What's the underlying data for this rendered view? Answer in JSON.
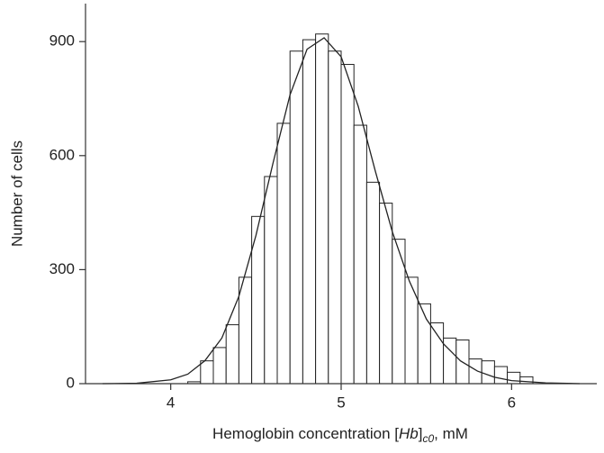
{
  "chart_data": {
    "type": "histogram",
    "xlabel_parts": [
      "Hemoglobin concentration [",
      "Hb",
      "]",
      "c0",
      ", mM"
    ],
    "ylabel": "Number of cells",
    "bins": [
      4.1,
      4.175,
      4.25,
      4.325,
      4.4,
      4.475,
      4.55,
      4.625,
      4.7,
      4.775,
      4.85,
      4.925,
      5.0,
      5.075,
      5.15,
      5.225,
      5.3,
      5.375,
      5.45,
      5.525,
      5.6,
      5.675,
      5.75,
      5.825,
      5.9,
      5.975,
      6.05,
      6.125
    ],
    "values": [
      5,
      60,
      95,
      155,
      280,
      440,
      545,
      685,
      875,
      905,
      920,
      875,
      840,
      680,
      530,
      475,
      380,
      280,
      210,
      160,
      120,
      115,
      65,
      60,
      45,
      30,
      18
    ],
    "bar_color": "#ffffff",
    "curve": {
      "x": [
        3.6,
        3.8,
        4.0,
        4.1,
        4.2,
        4.3,
        4.4,
        4.5,
        4.6,
        4.7,
        4.8,
        4.9,
        5.0,
        5.1,
        5.2,
        5.3,
        5.4,
        5.5,
        5.6,
        5.7,
        5.8,
        5.9,
        6.0,
        6.2,
        6.4
      ],
      "values": [
        0,
        1,
        10,
        25,
        60,
        120,
        230,
        390,
        580,
        760,
        880,
        910,
        860,
        730,
        560,
        400,
        270,
        170,
        105,
        60,
        33,
        17,
        8,
        2,
        0
      ],
      "color": "#222222"
    },
    "xlim": [
      3.5,
      6.5
    ],
    "ylim": [
      0,
      1000
    ],
    "xticks": [
      4,
      5,
      6
    ],
    "yticks": [
      0,
      300,
      600,
      900
    ]
  }
}
